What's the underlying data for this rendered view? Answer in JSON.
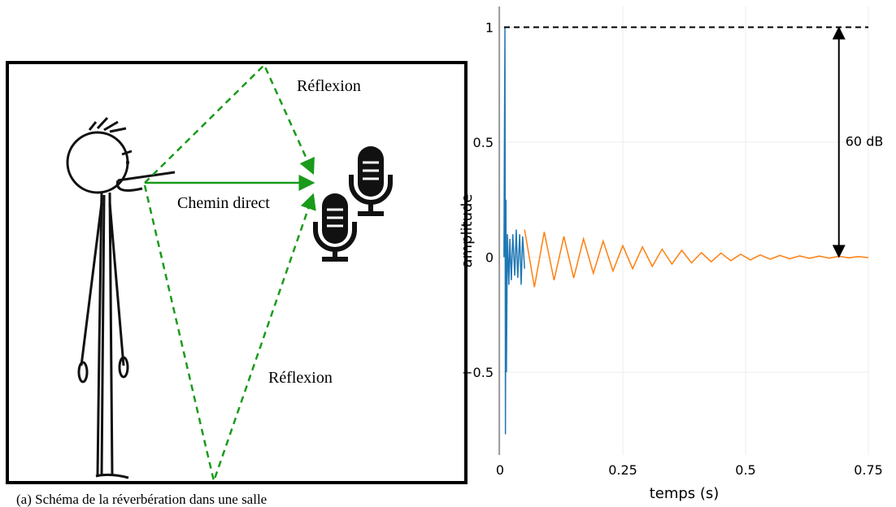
{
  "diagram": {
    "labels": [
      "Réflexion",
      "Chemin direct",
      "Réflexion"
    ],
    "caption": "(a) Schéma de la réverbération dans une salle"
  },
  "chart_data": {
    "type": "line",
    "x_label": "temps (s)",
    "y_label": "amplitude",
    "xlim": [
      0,
      0.75
    ],
    "ylim": [
      -0.86,
      1.09
    ],
    "xticks": [
      0,
      0.25,
      0.5,
      0.75
    ],
    "yticks": [
      {
        "value": -0.5,
        "label": "−0.5"
      },
      0,
      0.5,
      1
    ],
    "grid": true,
    "annotation": {
      "text": "60 dB",
      "from": 1,
      "to": 0,
      "x": 0.69
    },
    "series": [
      {
        "color": "#1f77b4",
        "x": [
          0.008,
          0.009,
          0.01,
          0.011,
          0.012,
          0.013,
          0.015,
          0.018,
          0.02,
          0.023,
          0.026,
          0.03,
          0.033,
          0.036,
          0.04,
          0.043,
          0.046,
          0.05
        ],
        "values": [
          0,
          0.55,
          1,
          -0.77,
          0.25,
          -0.5,
          0.1,
          -0.12,
          0.08,
          -0.1,
          0.1,
          -0.08,
          0.12,
          -0.09,
          0.1,
          -0.12,
          0.09,
          -0.05
        ]
      },
      {
        "color": "#ff7f0e",
        "x": [
          0.05,
          0.07,
          0.09,
          0.11,
          0.13,
          0.15,
          0.17,
          0.19,
          0.21,
          0.23,
          0.25,
          0.27,
          0.29,
          0.31,
          0.33,
          0.35,
          0.37,
          0.39,
          0.41,
          0.43,
          0.45,
          0.47,
          0.49,
          0.51,
          0.53,
          0.55,
          0.57,
          0.59,
          0.61,
          0.63,
          0.65,
          0.67,
          0.69,
          0.71,
          0.73,
          0.75
        ],
        "values": [
          0.12,
          -0.13,
          0.11,
          -0.1,
          0.09,
          -0.09,
          0.08,
          -0.07,
          0.07,
          -0.06,
          0.05,
          -0.05,
          0.045,
          -0.04,
          0.035,
          -0.03,
          0.03,
          -0.025,
          0.02,
          -0.02,
          0.018,
          -0.015,
          0.013,
          -0.012,
          0.01,
          -0.009,
          0.008,
          -0.007,
          0.006,
          -0.005,
          0.005,
          -0.004,
          0.004,
          -0.003,
          0.003,
          -0.002
        ]
      }
    ]
  }
}
